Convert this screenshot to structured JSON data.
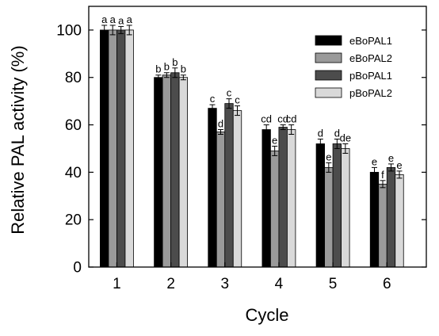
{
  "chart_data": {
    "type": "bar",
    "title": "",
    "xlabel": "Cycle",
    "ylabel": "Relative PAL activity (%)",
    "categories": [
      "1",
      "2",
      "3",
      "4",
      "5",
      "6"
    ],
    "ylim": [
      0,
      110
    ],
    "yticks": [
      0,
      20,
      40,
      60,
      80,
      100
    ],
    "grid": false,
    "legend_position": "top-right",
    "series": [
      {
        "name": "eBoPAL1",
        "color": "#000000",
        "values": [
          100,
          80,
          67,
          58,
          52,
          40
        ],
        "errors": [
          2,
          1,
          1.5,
          2,
          2,
          2
        ],
        "labels": [
          "a",
          "b",
          "c",
          "cd",
          "d",
          "e"
        ]
      },
      {
        "name": "eBoPAL2",
        "color": "#9a9a9a",
        "values": [
          100,
          81,
          57,
          49,
          42,
          35
        ],
        "errors": [
          2,
          1,
          1,
          2,
          2,
          1.5
        ],
        "labels": [
          "a",
          "b",
          "d",
          "e",
          "e",
          "f"
        ]
      },
      {
        "name": "pBoPAL1",
        "color": "#4c4c4c",
        "values": [
          100,
          82,
          69,
          59,
          52,
          42
        ],
        "errors": [
          1.5,
          2,
          2,
          1,
          2,
          1.5
        ],
        "labels": [
          "a",
          "b",
          "c",
          "cd",
          "d",
          "e"
        ]
      },
      {
        "name": "pBoPAL2",
        "color": "#d9d9d9",
        "values": [
          100,
          80,
          66,
          58,
          50,
          39
        ],
        "errors": [
          2,
          1,
          2,
          2,
          2,
          1.5
        ],
        "labels": [
          "a",
          "b",
          "c",
          "cd",
          "de",
          "e"
        ]
      }
    ]
  }
}
